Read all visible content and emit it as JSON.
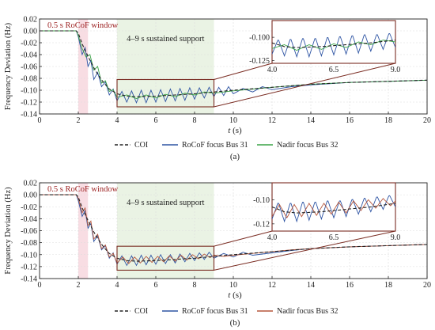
{
  "colors": {
    "coi": "#222222",
    "rocof": "#2f55a4",
    "nadir_a": "#3aa346",
    "nadir_b": "#b5563c",
    "rocof_window_fill": "#f6d5dc",
    "support_fill": "#e6f1df",
    "zoom_box": "#7a2c22",
    "window_text": "#9b1f1f",
    "grid": "#dddddd"
  },
  "chart_data": [
    {
      "type": "line",
      "panel": "(a)",
      "xlabel_pre": "t",
      "xlabel_post": "(s)",
      "ylabel": "Frequency Deviation (Hz)",
      "xlim": [
        0,
        20
      ],
      "ylim": [
        -0.14,
        0.02
      ],
      "xticks": [
        "0",
        "2",
        "4",
        "6",
        "8",
        "10",
        "12",
        "14",
        "16",
        "18",
        "20"
      ],
      "yticks": [
        "0.02",
        "0.00",
        "-0.02",
        "-0.04",
        "-0.06",
        "-0.08",
        "-0.10",
        "-0.12",
        "-0.14"
      ],
      "grid": true,
      "legend_position": "bottom-center",
      "annotations": {
        "rocof_window": {
          "label": "0.5 s RoCoF window",
          "x_range": [
            2.0,
            2.5
          ]
        },
        "support_window": {
          "label": "4–9 s sustained support",
          "x_range": [
            4.0,
            9.0
          ]
        }
      },
      "zoom": {
        "x_range": [
          4.0,
          9.0
        ],
        "y_range": [
          -0.128,
          -0.082
        ],
        "xticks": [
          "4.0",
          "6.5",
          "9.0"
        ],
        "yticks": [
          "-0.100",
          "-0.125"
        ],
        "ytick_values": [
          -0.1,
          -0.125
        ]
      },
      "series": [
        {
          "name": "COI",
          "style": "dashed",
          "x": [
            0,
            1.9,
            2.0,
            2.2,
            2.5,
            2.8,
            3.0,
            3.3,
            3.6,
            4.0,
            4.5,
            5.0,
            6.0,
            7.0,
            8.0,
            9.0,
            10.0,
            12.0,
            14.0,
            16.0,
            18.0,
            20.0
          ],
          "y": [
            0,
            0,
            -0.004,
            -0.022,
            -0.043,
            -0.062,
            -0.073,
            -0.087,
            -0.098,
            -0.106,
            -0.11,
            -0.111,
            -0.11,
            -0.108,
            -0.106,
            -0.103,
            -0.1,
            -0.095,
            -0.09,
            -0.087,
            -0.085,
            -0.083
          ]
        },
        {
          "name": "RoCoF focus Bus 31",
          "style": "solid",
          "x": [
            0,
            1.9,
            2.0,
            2.2,
            2.35,
            2.5,
            2.65,
            2.8,
            3.0,
            3.2,
            3.4,
            3.6,
            3.8,
            4.0,
            4.25,
            4.5,
            4.75,
            5.0,
            5.25,
            5.5,
            5.75,
            6.0,
            6.25,
            6.5,
            6.75,
            7.0,
            7.25,
            7.5,
            7.75,
            8.0,
            8.25,
            8.5,
            8.75,
            9.0,
            9.25,
            9.5,
            9.75,
            10.0,
            10.5,
            11.0,
            11.5,
            12.0,
            13.0,
            14.0,
            16.0,
            18.0,
            20.0
          ],
          "y": [
            0,
            0,
            -0.01,
            -0.04,
            -0.028,
            -0.06,
            -0.05,
            -0.082,
            -0.07,
            -0.094,
            -0.086,
            -0.108,
            -0.098,
            -0.118,
            -0.102,
            -0.12,
            -0.101,
            -0.121,
            -0.1,
            -0.121,
            -0.1,
            -0.12,
            -0.099,
            -0.119,
            -0.098,
            -0.118,
            -0.097,
            -0.117,
            -0.096,
            -0.115,
            -0.096,
            -0.113,
            -0.095,
            -0.111,
            -0.095,
            -0.109,
            -0.094,
            -0.106,
            -0.097,
            -0.103,
            -0.094,
            -0.099,
            -0.094,
            -0.091,
            -0.087,
            -0.085,
            -0.083
          ]
        },
        {
          "name": "Nadir focus Bus 32",
          "style": "solid",
          "x": [
            0,
            1.9,
            2.0,
            2.2,
            2.4,
            2.6,
            2.8,
            3.0,
            3.2,
            3.4,
            3.6,
            3.8,
            4.0,
            4.5,
            5.0,
            5.5,
            6.0,
            6.5,
            7.0,
            7.5,
            8.0,
            8.5,
            9.0,
            10.0,
            11.0,
            12.0,
            14.0,
            16.0,
            18.0,
            20.0
          ],
          "y": [
            0,
            0,
            -0.008,
            -0.03,
            -0.044,
            -0.04,
            -0.066,
            -0.06,
            -0.088,
            -0.084,
            -0.102,
            -0.099,
            -0.112,
            -0.108,
            -0.114,
            -0.108,
            -0.113,
            -0.107,
            -0.111,
            -0.105,
            -0.108,
            -0.103,
            -0.105,
            -0.101,
            -0.098,
            -0.095,
            -0.09,
            -0.087,
            -0.085,
            -0.083
          ]
        }
      ]
    },
    {
      "type": "line",
      "panel": "(b)",
      "xlabel_pre": "t",
      "xlabel_post": "(s)",
      "ylabel": "Frequency Deviation (Hz)",
      "xlim": [
        0,
        20
      ],
      "ylim": [
        -0.14,
        0.02
      ],
      "xticks": [
        "0",
        "2",
        "4",
        "6",
        "8",
        "10",
        "12",
        "14",
        "16",
        "18",
        "20"
      ],
      "yticks": [
        "0.02",
        "0.00",
        "-0.02",
        "-0.04",
        "-0.06",
        "-0.08",
        "-0.10",
        "-0.12",
        "-0.14"
      ],
      "grid": true,
      "legend_position": "bottom-center",
      "annotations": {
        "rocof_window": {
          "label": "0.5 s RoCoF window",
          "x_range": [
            2.0,
            2.5
          ]
        },
        "support_window": {
          "label": "4–9 s sustained support",
          "x_range": [
            4.0,
            9.0
          ]
        }
      },
      "zoom": {
        "x_range": [
          4.0,
          9.0
        ],
        "y_range": [
          -0.126,
          -0.086
        ],
        "xticks": [
          "4.0",
          "6.5",
          "9.0"
        ],
        "yticks": [
          "-0.10",
          "-0.12"
        ],
        "ytick_values": [
          -0.1,
          -0.12
        ]
      },
      "series": [
        {
          "name": "COI",
          "style": "dashed",
          "x": [
            0,
            1.9,
            2.0,
            2.2,
            2.5,
            2.8,
            3.0,
            3.3,
            3.6,
            4.0,
            4.5,
            5.0,
            6.0,
            7.0,
            8.0,
            9.0,
            10.0,
            12.0,
            14.0,
            16.0,
            18.0,
            20.0
          ],
          "y": [
            0,
            0,
            -0.004,
            -0.022,
            -0.043,
            -0.062,
            -0.073,
            -0.087,
            -0.098,
            -0.106,
            -0.11,
            -0.111,
            -0.11,
            -0.108,
            -0.106,
            -0.103,
            -0.1,
            -0.095,
            -0.09,
            -0.087,
            -0.085,
            -0.083
          ]
        },
        {
          "name": "RoCoF focus Bus 31",
          "style": "solid",
          "x": [
            0,
            1.9,
            2.0,
            2.2,
            2.35,
            2.5,
            2.65,
            2.8,
            3.0,
            3.2,
            3.4,
            3.6,
            3.8,
            4.0,
            4.25,
            4.5,
            4.75,
            5.0,
            5.25,
            5.5,
            5.75,
            6.0,
            6.25,
            6.5,
            6.75,
            7.0,
            7.25,
            7.5,
            7.75,
            8.0,
            8.25,
            8.5,
            8.75,
            9.0,
            9.5,
            10.0,
            10.5,
            11.0,
            12.0,
            13.0,
            14.0,
            16.0,
            18.0,
            20.0
          ],
          "y": [
            0,
            0,
            -0.01,
            -0.036,
            -0.026,
            -0.056,
            -0.048,
            -0.078,
            -0.068,
            -0.092,
            -0.085,
            -0.106,
            -0.097,
            -0.116,
            -0.102,
            -0.118,
            -0.102,
            -0.118,
            -0.101,
            -0.117,
            -0.101,
            -0.116,
            -0.1,
            -0.115,
            -0.1,
            -0.114,
            -0.099,
            -0.112,
            -0.098,
            -0.11,
            -0.097,
            -0.108,
            -0.096,
            -0.106,
            -0.098,
            -0.104,
            -0.096,
            -0.101,
            -0.097,
            -0.093,
            -0.09,
            -0.087,
            -0.085,
            -0.083
          ]
        },
        {
          "name": "Nadir focus Bus 32",
          "style": "solid",
          "x": [
            0,
            1.9,
            2.0,
            2.2,
            2.35,
            2.5,
            2.65,
            2.8,
            3.0,
            3.2,
            3.4,
            3.6,
            3.8,
            4.0,
            4.3,
            4.6,
            4.9,
            5.2,
            5.5,
            5.8,
            6.1,
            6.4,
            6.7,
            7.0,
            7.3,
            7.6,
            7.9,
            8.2,
            8.5,
            8.8,
            9.0,
            9.5,
            10.0,
            11.0,
            12.0,
            13.0,
            14.0,
            16.0,
            18.0,
            20.0
          ],
          "y": [
            0,
            0,
            -0.006,
            -0.03,
            -0.022,
            -0.052,
            -0.044,
            -0.074,
            -0.066,
            -0.09,
            -0.084,
            -0.104,
            -0.098,
            -0.114,
            -0.104,
            -0.115,
            -0.104,
            -0.114,
            -0.103,
            -0.113,
            -0.103,
            -0.112,
            -0.102,
            -0.111,
            -0.101,
            -0.109,
            -0.1,
            -0.107,
            -0.099,
            -0.105,
            -0.101,
            -0.103,
            -0.101,
            -0.098,
            -0.095,
            -0.092,
            -0.09,
            -0.087,
            -0.085,
            -0.083
          ]
        }
      ]
    }
  ]
}
